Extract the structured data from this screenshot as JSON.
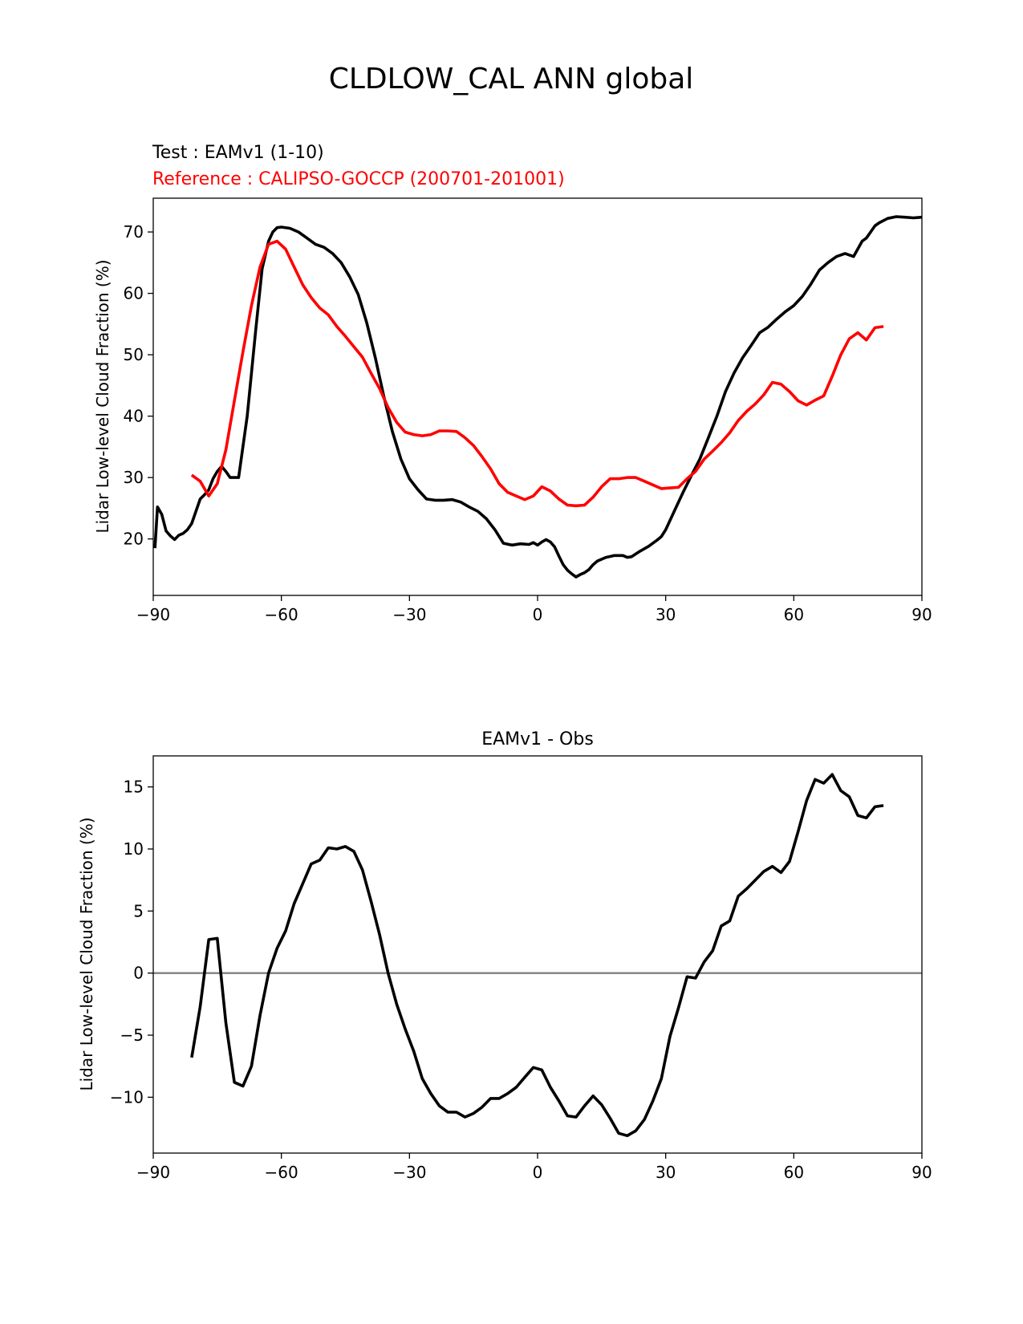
{
  "figure": {
    "title": "CLDLOW_CAL ANN global"
  },
  "chart_data": [
    {
      "type": "line",
      "title_test": "Test : EAMv1 (1-10)",
      "title_ref": "Reference : CALIPSO-GOCCP (200701-201001)",
      "xlabel": "",
      "ylabel": "Lidar Low-level Cloud Fraction (%)",
      "xlim": [
        -90,
        90
      ],
      "ylim": [
        10.8,
        75.5
      ],
      "xticks": [
        -90,
        -60,
        -30,
        0,
        30,
        60,
        90
      ],
      "xtick_labels": [
        "−90",
        "−60",
        "−30",
        "0",
        "30",
        "60",
        "90"
      ],
      "yticks": [
        20,
        30,
        40,
        50,
        60,
        70
      ],
      "ytick_labels": [
        "20",
        "30",
        "40",
        "50",
        "60",
        "70"
      ],
      "grid": false,
      "colors": {
        "test": "#000000",
        "reference": "#ff0000"
      },
      "series": [
        {
          "key": "test",
          "x": [
            -89.6,
            -89.0,
            -88.0,
            -87.0,
            -86.0,
            -85.0,
            -84.0,
            -83.0,
            -82.0,
            -81.0,
            -80.0,
            -79.0,
            -78.0,
            -77.0,
            -76.0,
            -75.0,
            -74.0,
            -73.0,
            -72.0,
            -70.0,
            -68.0,
            -66.0,
            -64.5,
            -63.0,
            -62.0,
            -61.0,
            -60.0,
            -58.0,
            -56.0,
            -54.0,
            -52.0,
            -50.0,
            -48.0,
            -46.0,
            -44.0,
            -42.0,
            -40.0,
            -38.0,
            -36.0,
            -34.0,
            -32.0,
            -30.0,
            -28.0,
            -26.0,
            -24.0,
            -22.0,
            -20.0,
            -18.0,
            -16.0,
            -14.0,
            -12.0,
            -10.0,
            -8.0,
            -6.0,
            -4.0,
            -2.0,
            -1.0,
            0.0,
            1.0,
            2.0,
            3.0,
            4.0,
            5.0,
            6.0,
            7.0,
            8.0,
            9.0,
            10.0,
            11.0,
            12.0,
            13.0,
            14.0,
            16.0,
            18.0,
            20.0,
            21.0,
            22.0,
            24.0,
            26.0,
            28.0,
            29.0,
            30.0,
            32.0,
            34.0,
            36.0,
            38.0,
            40.0,
            42.0,
            44.0,
            46.0,
            48.0,
            50.0,
            52.0,
            54.0,
            56.0,
            58.0,
            60.0,
            62.0,
            64.0,
            66.0,
            68.0,
            69.0,
            70.0,
            72.0,
            74.0,
            76.0,
            77.0,
            78.0,
            79.0,
            80.0,
            82.0,
            84.0,
            86.0,
            88.0,
            90.0
          ],
          "y": [
            18.5,
            25.2,
            24.0,
            21.3,
            20.5,
            19.9,
            20.6,
            20.9,
            21.5,
            22.5,
            24.5,
            26.5,
            27.2,
            28.0,
            29.8,
            31.0,
            31.8,
            31.0,
            30.0,
            30.0,
            40.0,
            54.0,
            64.0,
            68.5,
            70.0,
            70.7,
            70.8,
            70.6,
            70.0,
            69.0,
            68.0,
            67.5,
            66.5,
            65.0,
            62.7,
            59.8,
            55.2,
            49.5,
            43.2,
            37.5,
            33.0,
            29.8,
            28.0,
            26.5,
            26.3,
            26.3,
            26.4,
            26.0,
            25.2,
            24.5,
            23.3,
            21.5,
            19.3,
            19.0,
            19.2,
            19.1,
            19.4,
            19.0,
            19.5,
            19.9,
            19.5,
            18.7,
            17.2,
            15.8,
            14.9,
            14.3,
            13.8,
            14.2,
            14.5,
            15.0,
            15.8,
            16.4,
            17.0,
            17.3,
            17.3,
            17.0,
            17.1,
            18.0,
            18.8,
            19.8,
            20.4,
            21.5,
            24.5,
            27.5,
            30.3,
            33.0,
            36.5,
            40.0,
            44.0,
            47.0,
            49.5,
            51.5,
            53.6,
            54.5,
            55.8,
            57.0,
            58.0,
            59.5,
            61.5,
            63.8,
            65.0,
            65.5,
            66.0,
            66.5,
            66.0,
            68.5,
            69.0,
            70.0,
            71.0,
            71.5,
            72.2,
            72.5,
            72.4,
            72.3,
            72.4
          ]
        },
        {
          "key": "reference",
          "x": [
            -81.0,
            -79.0,
            -77.0,
            -75.0,
            -73.0,
            -71.0,
            -69.0,
            -67.0,
            -65.0,
            -63.0,
            -61.0,
            -59.0,
            -57.0,
            -55.0,
            -53.0,
            -51.0,
            -49.0,
            -47.0,
            -45.0,
            -43.0,
            -41.0,
            -39.0,
            -37.0,
            -35.0,
            -33.0,
            -31.0,
            -29.0,
            -27.0,
            -25.0,
            -23.0,
            -21.0,
            -19.0,
            -17.0,
            -15.0,
            -13.0,
            -11.0,
            -9.0,
            -7.0,
            -5.0,
            -3.0,
            -1.0,
            1.0,
            3.0,
            5.0,
            7.0,
            9.0,
            11.0,
            13.0,
            15.0,
            17.0,
            19.0,
            21.0,
            23.0,
            25.0,
            27.0,
            29.0,
            31.0,
            33.0,
            35.0,
            37.0,
            39.0,
            41.0,
            43.0,
            45.0,
            47.0,
            49.0,
            51.0,
            53.0,
            55.0,
            57.0,
            59.0,
            61.0,
            63.0,
            65.0,
            67.0,
            69.0,
            71.0,
            73.0,
            75.0,
            77.0,
            79.0,
            81.0
          ],
          "y": [
            30.4,
            29.4,
            27.0,
            29.0,
            34.5,
            42.5,
            50.5,
            58.0,
            64.3,
            68.0,
            68.5,
            67.2,
            64.3,
            61.4,
            59.3,
            57.6,
            56.5,
            54.6,
            53.0,
            51.3,
            49.6,
            47.0,
            44.5,
            41.4,
            39.0,
            37.4,
            37.0,
            36.8,
            37.0,
            37.6,
            37.6,
            37.5,
            36.5,
            35.2,
            33.4,
            31.4,
            29.0,
            27.6,
            27.0,
            26.4,
            27.0,
            28.5,
            27.8,
            26.5,
            25.5,
            25.4,
            25.5,
            26.8,
            28.5,
            29.8,
            29.8,
            30.0,
            30.0,
            29.4,
            28.8,
            28.2,
            28.3,
            28.4,
            29.8,
            31.0,
            33.0,
            34.3,
            35.7,
            37.3,
            39.3,
            40.8,
            42.0,
            43.5,
            45.5,
            45.2,
            44.0,
            42.5,
            41.8,
            42.6,
            43.3,
            46.5,
            50.0,
            52.6,
            53.6,
            52.4,
            54.4,
            54.6
          ]
        }
      ]
    },
    {
      "type": "line",
      "title": "EAMv1 - Obs",
      "xlabel": "",
      "ylabel": "Lidar Low-level Cloud Fraction (%)",
      "xlim": [
        -90,
        90
      ],
      "ylim": [
        -14.5,
        17.5
      ],
      "xticks": [
        -90,
        -60,
        -30,
        0,
        30,
        60,
        90
      ],
      "xtick_labels": [
        "−90",
        "−60",
        "−30",
        "0",
        "30",
        "60",
        "90"
      ],
      "yticks": [
        -10,
        -5,
        0,
        5,
        10,
        15
      ],
      "ytick_labels": [
        "−10",
        "−5",
        "0",
        "5",
        "10",
        "15"
      ],
      "grid": false,
      "zero_line": 0,
      "colors": {
        "diff": "#000000",
        "zero_line": "#808080"
      },
      "series": [
        {
          "key": "diff",
          "x": [
            -81.0,
            -79.0,
            -77.0,
            -75.0,
            -73.0,
            -71.0,
            -69.0,
            -67.0,
            -65.0,
            -63.0,
            -61.0,
            -59.0,
            -57.0,
            -55.0,
            -53.0,
            -51.0,
            -49.0,
            -47.0,
            -45.0,
            -43.0,
            -41.0,
            -39.0,
            -37.0,
            -35.0,
            -33.0,
            -31.0,
            -29.0,
            -27.0,
            -25.0,
            -23.0,
            -21.0,
            -19.0,
            -17.0,
            -15.0,
            -13.0,
            -11.0,
            -9.0,
            -7.0,
            -5.0,
            -3.0,
            -1.0,
            1.0,
            3.0,
            5.0,
            7.0,
            9.0,
            11.0,
            13.0,
            15.0,
            17.0,
            19.0,
            21.0,
            23.0,
            25.0,
            27.0,
            29.0,
            31.0,
            33.0,
            35.0,
            37.0,
            39.0,
            41.0,
            43.0,
            45.0,
            47.0,
            49.0,
            51.0,
            53.0,
            55.0,
            57.0,
            59.0,
            61.0,
            63.0,
            65.0,
            67.0,
            69.0,
            71.0,
            73.0,
            75.0,
            77.0,
            79.0,
            81.0
          ],
          "y": [
            -6.8,
            -2.7,
            2.7,
            2.8,
            -4.0,
            -8.8,
            -9.1,
            -7.5,
            -3.4,
            0.0,
            2.0,
            3.4,
            5.6,
            7.2,
            8.8,
            9.1,
            10.1,
            10.0,
            10.2,
            9.8,
            8.3,
            5.8,
            3.1,
            0.0,
            -2.5,
            -4.5,
            -6.3,
            -8.5,
            -9.7,
            -10.7,
            -11.2,
            -11.2,
            -11.6,
            -11.3,
            -10.8,
            -10.1,
            -10.1,
            -9.7,
            -9.2,
            -8.4,
            -7.6,
            -7.8,
            -9.2,
            -10.3,
            -11.5,
            -11.6,
            -10.7,
            -9.9,
            -10.6,
            -11.7,
            -12.9,
            -13.1,
            -12.7,
            -11.8,
            -10.3,
            -8.5,
            -5.1,
            -2.8,
            -0.3,
            -0.4,
            0.9,
            1.8,
            3.8,
            4.2,
            6.2,
            6.8,
            7.5,
            8.2,
            8.6,
            8.1,
            9.0,
            11.4,
            13.9,
            15.6,
            15.3,
            16.0,
            14.7,
            14.2,
            12.7,
            12.5,
            13.4,
            13.5
          ]
        }
      ]
    }
  ]
}
